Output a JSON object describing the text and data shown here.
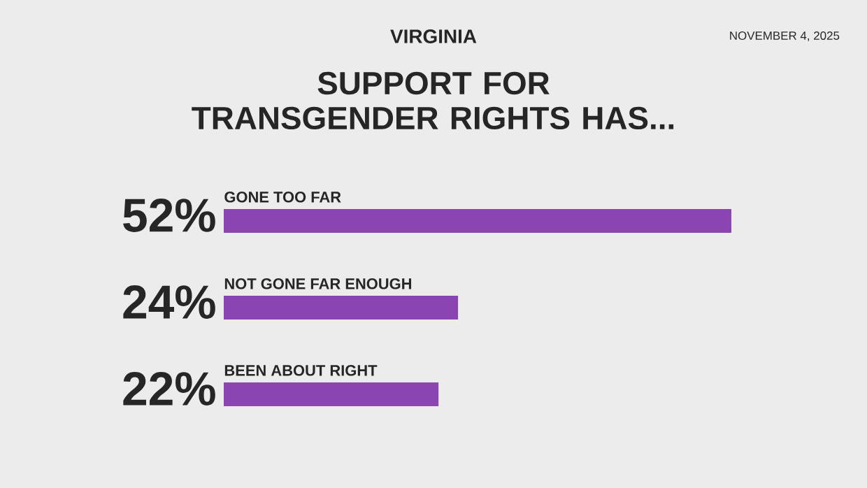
{
  "chart_data": {
    "type": "bar",
    "orientation": "horizontal",
    "title": "SUPPORT FOR TRANSGENDER RIGHTS HAS...",
    "categories": [
      "GONE TOO FAR",
      "NOT GONE FAR ENOUGH",
      "BEEN ABOUT RIGHT"
    ],
    "values": [
      52,
      24,
      22
    ],
    "value_labels": [
      "52%",
      "24%",
      "22%"
    ],
    "color": "#8a45b0",
    "annotations": [
      "VIRGINIA",
      "NOVEMBER 4, 2025"
    ]
  }
}
